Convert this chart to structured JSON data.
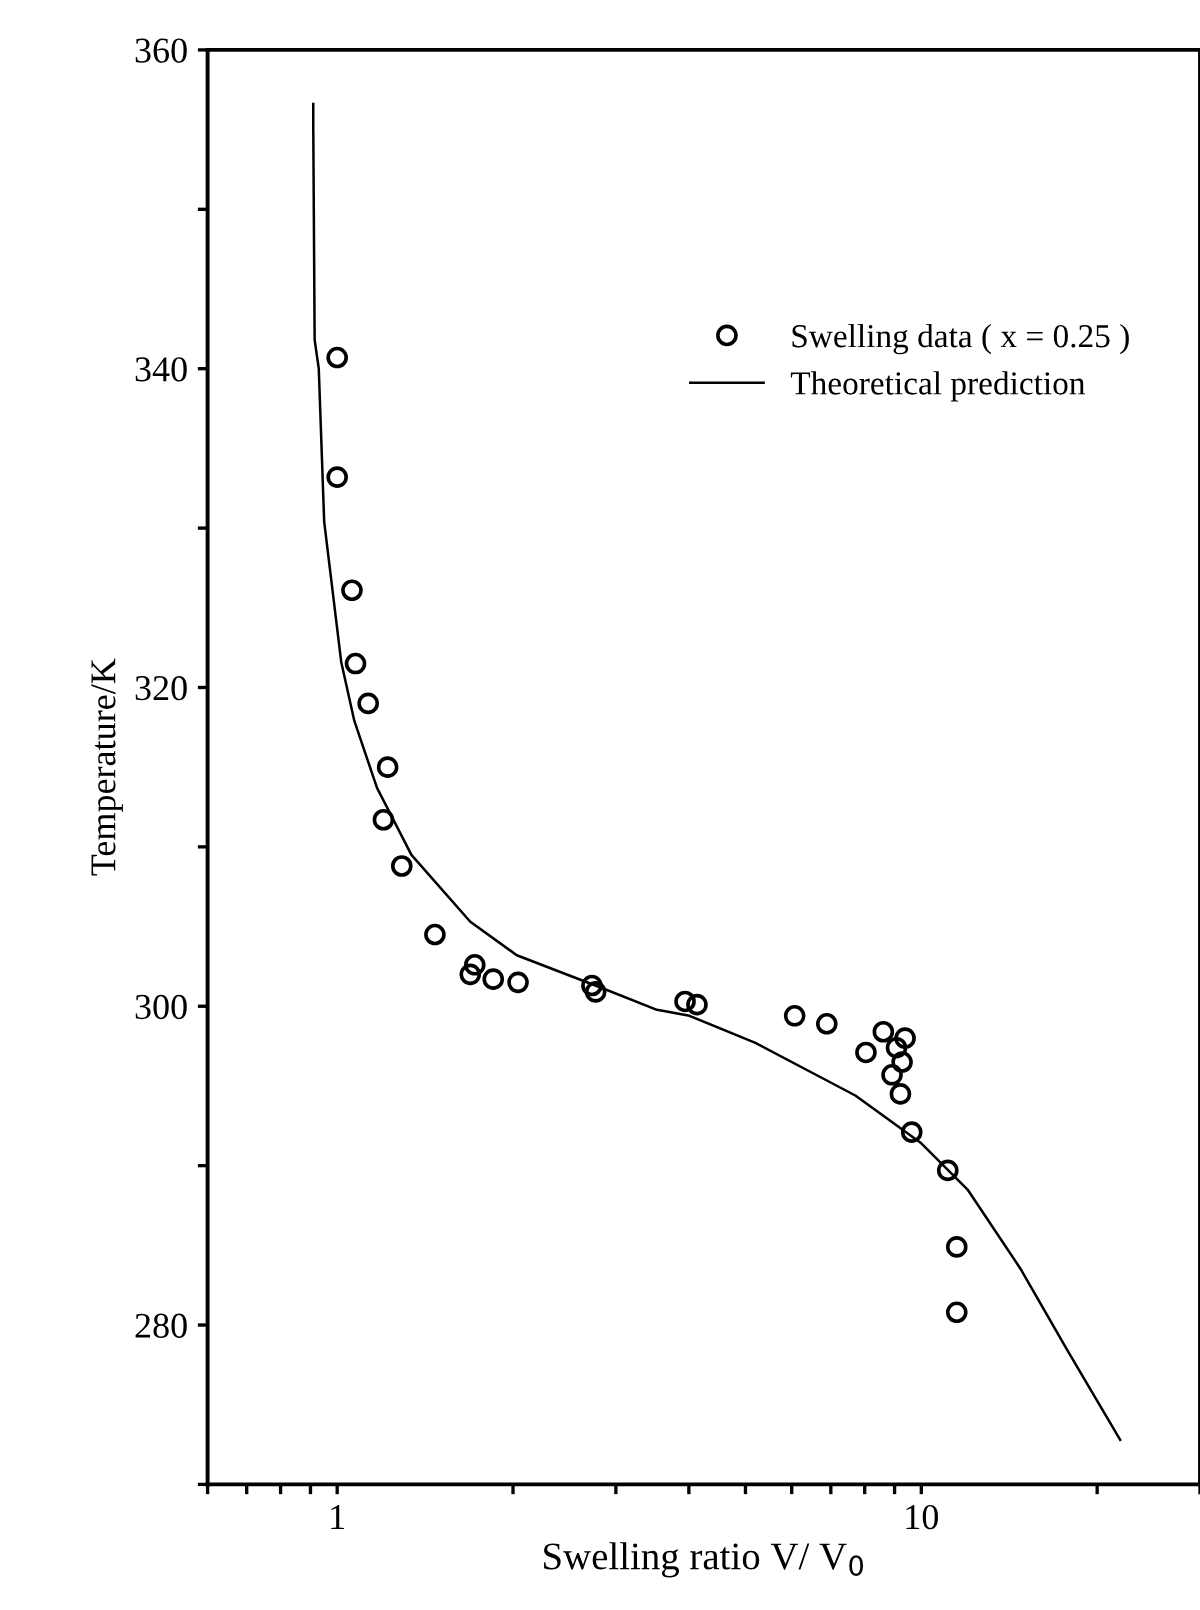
{
  "chart_data": {
    "type": "scatter",
    "xlabel": "Swelling ratio V/ V$_{0}$",
    "ylabel": "Temperature/K",
    "log": "x",
    "xlim": [
      0.6,
      30
    ],
    "ylim": [
      270,
      360
    ],
    "xticks": [
      {
        "value": 0.6,
        "label": null
      },
      {
        "value": 0.7,
        "label": null
      },
      {
        "value": 0.8,
        "label": null
      },
      {
        "value": 0.9,
        "label": null
      },
      1,
      {
        "value": 2,
        "label": null
      },
      {
        "value": 3,
        "label": null
      },
      {
        "value": 4,
        "label": null
      },
      {
        "value": 5,
        "label": null
      },
      {
        "value": 6,
        "label": null
      },
      {
        "value": 7,
        "label": null
      },
      {
        "value": 8,
        "label": null
      },
      {
        "value": 9,
        "label": null
      },
      10,
      {
        "value": 20,
        "label": null
      },
      {
        "value": 30,
        "label": null
      }
    ],
    "yticks": [
      {
        "value": 270,
        "label": null
      },
      280,
      {
        "value": 290,
        "label": null
      },
      300,
      {
        "value": 310,
        "label": null
      },
      320,
      {
        "value": 330,
        "label": null
      },
      340,
      {
        "value": 350,
        "label": null
      },
      360
    ],
    "legend": "top right",
    "grid": false,
    "series": [
      {
        "name": "Swelling data ( x = 0.25 )",
        "marker": "circle",
        "color": "#000000",
        "x": [
          1.0,
          1.0,
          1.06,
          1.075,
          1.13,
          1.22,
          1.2,
          1.29,
          1.47,
          1.72,
          1.69,
          1.72,
          1.85,
          2.04,
          2.73,
          2.77,
          3.94,
          4.13,
          6.07,
          6.89,
          8.04,
          8.61,
          9.38,
          9.07,
          9.27,
          8.91,
          9.21,
          9.63,
          11.1,
          11.5,
          11.5
        ],
        "values": [
          340.7,
          333.2,
          326.1,
          321.5,
          319.0,
          315.0,
          311.7,
          308.8,
          304.5,
          302.6,
          302.0,
          null,
          301.7,
          301.5,
          301.3,
          300.9,
          300.3,
          300.1,
          299.4,
          298.9,
          297.1,
          298.4,
          298.0,
          297.4,
          296.5,
          295.7,
          294.5,
          292.1,
          289.7,
          284.9,
          280.8
        ]
      },
      {
        "name": "Theoretical prediction",
        "type": "line",
        "marker": "none",
        "line_style": "solid",
        "color": "#000000",
        "x": [
          0.91,
          0.91,
          0.915,
          0.93,
          0.95,
          1.016,
          1.07,
          1.17,
          1.34,
          1.69,
          2.03,
          2.86,
          3.51,
          4.01,
          5.2,
          7.71,
          10.0,
          12.0,
          14.8,
          17.8,
          21.9
        ],
        "values": [
          356.6,
          355.2,
          341.8,
          340.0,
          330.4,
          321.6,
          317.9,
          313.7,
          309.5,
          305.3,
          303.2,
          301.1,
          299.8,
          299.4,
          297.7,
          294.4,
          291.4,
          288.5,
          283.5,
          278.4,
          272.8
        ]
      }
    ]
  }
}
